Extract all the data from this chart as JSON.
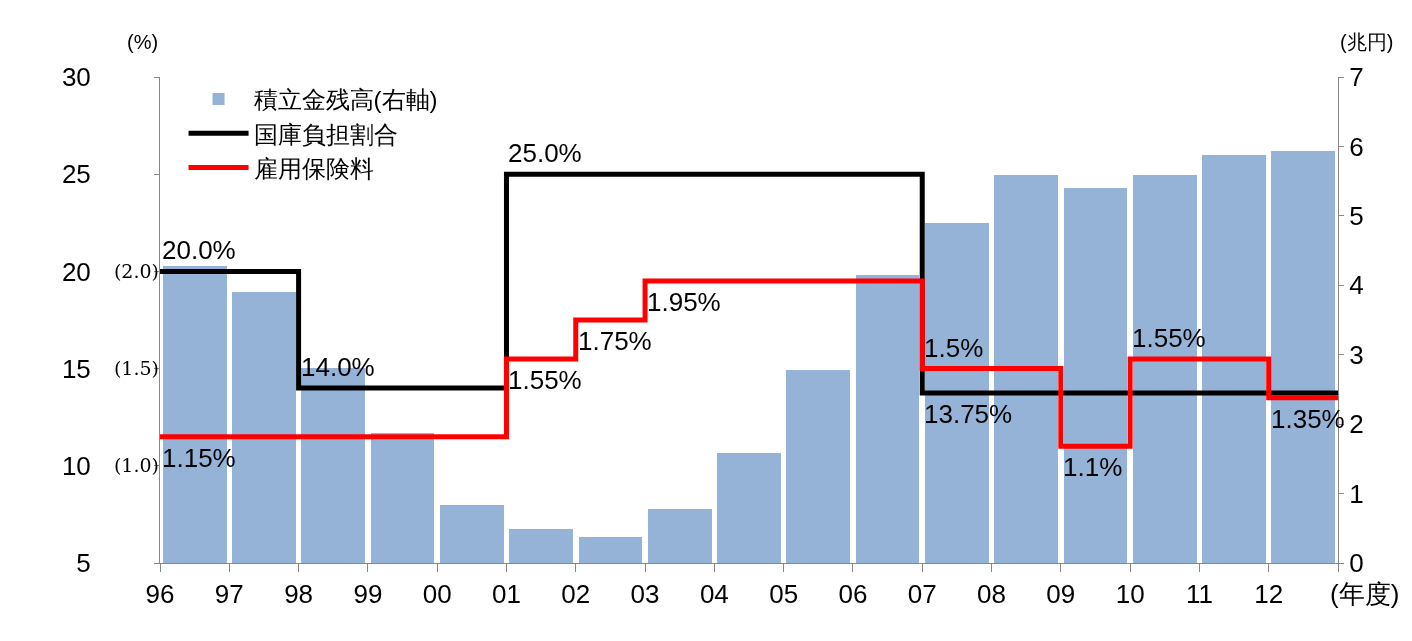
{
  "chart_data": {
    "type": "bar",
    "ylabel": "(%)",
    "y2label": "(兆円)",
    "xlabel": "(年度)",
    "xlim": [
      1996,
      2013
    ],
    "xticks": [
      {
        "value": 1996,
        "label": "96"
      },
      {
        "value": 1997,
        "label": "97"
      },
      {
        "value": 1998,
        "label": "98"
      },
      {
        "value": 1999,
        "label": "99"
      },
      {
        "value": 2000,
        "label": "00"
      },
      {
        "value": 2001,
        "label": "01"
      },
      {
        "value": 2002,
        "label": "02"
      },
      {
        "value": 2003,
        "label": "03"
      },
      {
        "value": 2004,
        "label": "04"
      },
      {
        "value": 2005,
        "label": "05"
      },
      {
        "value": 2006,
        "label": "06"
      },
      {
        "value": 2007,
        "label": "07"
      },
      {
        "value": 2008,
        "label": "08"
      },
      {
        "value": 2009,
        "label": "09"
      },
      {
        "value": 2010,
        "label": "10"
      },
      {
        "value": 2011,
        "label": "11"
      },
      {
        "value": 2012,
        "label": "12"
      },
      {
        "value": 2013,
        "label": null
      }
    ],
    "ylim": [
      5,
      30
    ],
    "yticks": [
      5,
      10,
      15,
      20,
      25,
      30
    ],
    "y2lim": [
      0,
      7
    ],
    "y2ticks": [
      0,
      1,
      2,
      3,
      4,
      5,
      6,
      7
    ],
    "y3lim": [
      0.5,
      3.0
    ],
    "y3ticks": [
      {
        "value": 1.0,
        "label": "(1.0)"
      },
      {
        "value": 1.5,
        "label": "(1.5)"
      },
      {
        "value": 2.0,
        "label": "(2.0)"
      }
    ],
    "legend": "top left",
    "series": [
      {
        "name": "積立金残高(右軸)",
        "axis": "y2",
        "color": "#95b3d7",
        "x": [
          1996.5,
          1997.5,
          1998.5,
          1999.5,
          2000.5,
          2001.5,
          2002.5,
          2003.5,
          2004.5,
          2005.5,
          2006.5,
          2007.5,
          2008.5,
          2009.5,
          2010.5,
          2011.5,
          2012.5
        ],
        "values": [
          4.28,
          3.9,
          2.81,
          1.87,
          0.84,
          0.49,
          0.37,
          0.78,
          1.58,
          2.78,
          4.15,
          4.9,
          5.59,
          5.4,
          5.59,
          5.88,
          5.94
        ]
      },
      {
        "name": "国庫負担割合",
        "type": "step",
        "axis": "y",
        "color": "#000000",
        "x": [
          1996,
          1998,
          2001,
          2007,
          2013
        ],
        "values": [
          20,
          14,
          25,
          13.75,
          13.75
        ],
        "value_labels": [
          "20.0%",
          "14.0%",
          "25.0%",
          "13.75%",
          null
        ]
      },
      {
        "name": "雇用保険料",
        "type": "step",
        "axis": "y3",
        "color": "#ff0000",
        "x": [
          1996,
          2001,
          2002,
          2003,
          2007,
          2009,
          2010,
          2012,
          2013
        ],
        "values": [
          1.15,
          1.55,
          1.75,
          1.95,
          1.5,
          1.1,
          1.55,
          1.35,
          1.35
        ],
        "value_labels": [
          "1.15%",
          "1.55%",
          "1.75%",
          "1.95%",
          "1.5%",
          "1.1%",
          "1.55%",
          "1.35%",
          null
        ]
      }
    ]
  }
}
